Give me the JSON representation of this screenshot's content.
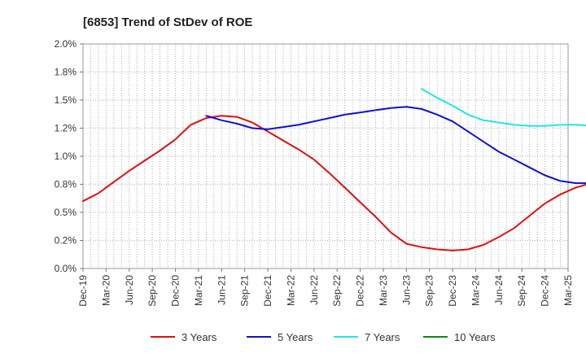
{
  "chart_data": {
    "type": "line",
    "title": "[6853]  Trend of StDev of ROE",
    "xlabel": "",
    "ylabel": "",
    "ylim": [
      0,
      2.0
    ],
    "yticks": [
      {
        "v": 0.0,
        "label": "0.0%"
      },
      {
        "v": 0.25,
        "label": "0.2%"
      },
      {
        "v": 0.5,
        "label": "0.5%"
      },
      {
        "v": 0.75,
        "label": "0.8%"
      },
      {
        "v": 1.0,
        "label": "1.0%"
      },
      {
        "v": 1.25,
        "label": "1.2%"
      },
      {
        "v": 1.5,
        "label": "1.5%"
      },
      {
        "v": 1.75,
        "label": "1.8%"
      },
      {
        "v": 2.0,
        "label": "2.0%"
      }
    ],
    "xticks": [
      "Dec-19",
      "Mar-20",
      "Jun-20",
      "Sep-20",
      "Dec-20",
      "Mar-21",
      "Jun-21",
      "Sep-21",
      "Dec-21",
      "Mar-22",
      "Jun-22",
      "Sep-22",
      "Dec-22",
      "Mar-23",
      "Jun-23",
      "Sep-23",
      "Dec-23",
      "Mar-24",
      "Jun-24",
      "Sep-24",
      "Dec-24",
      "Mar-25"
    ],
    "grid": true,
    "legend_position": "bottom",
    "series": [
      {
        "name": "3 Years",
        "color": "#dd1111",
        "values": [
          0.6,
          0.67,
          0.77,
          0.87,
          0.96,
          1.05,
          1.15,
          1.28,
          1.34,
          1.36,
          1.35,
          1.3,
          1.22,
          1.14,
          1.06,
          0.97,
          0.85,
          0.72,
          0.59,
          0.46,
          0.32,
          0.22,
          0.19,
          0.17,
          0.16,
          0.17,
          0.21,
          0.28,
          0.36,
          0.47,
          0.58,
          0.66,
          0.72,
          0.76,
          0.8,
          0.84,
          0.89
        ]
      },
      {
        "name": "5 Years",
        "color": "#1111cc",
        "values": [
          null,
          null,
          null,
          null,
          null,
          null,
          null,
          null,
          1.36,
          1.32,
          1.29,
          1.25,
          1.24,
          1.26,
          1.28,
          1.31,
          1.34,
          1.37,
          1.39,
          1.41,
          1.43,
          1.44,
          1.42,
          1.37,
          1.31,
          1.22,
          1.13,
          1.04,
          0.97,
          0.9,
          0.83,
          0.78,
          0.76,
          0.76
        ]
      },
      {
        "name": "7 Years",
        "color": "#22e5e5",
        "values": [
          null,
          null,
          null,
          null,
          null,
          null,
          null,
          null,
          null,
          null,
          null,
          null,
          null,
          null,
          null,
          null,
          null,
          null,
          null,
          null,
          null,
          null,
          1.6,
          1.52,
          1.45,
          1.37,
          1.32,
          1.3,
          1.28,
          1.27,
          1.27,
          1.28,
          1.28,
          1.27,
          1.26
        ]
      },
      {
        "name": "10 Years",
        "color": "#118811",
        "values": []
      }
    ]
  }
}
